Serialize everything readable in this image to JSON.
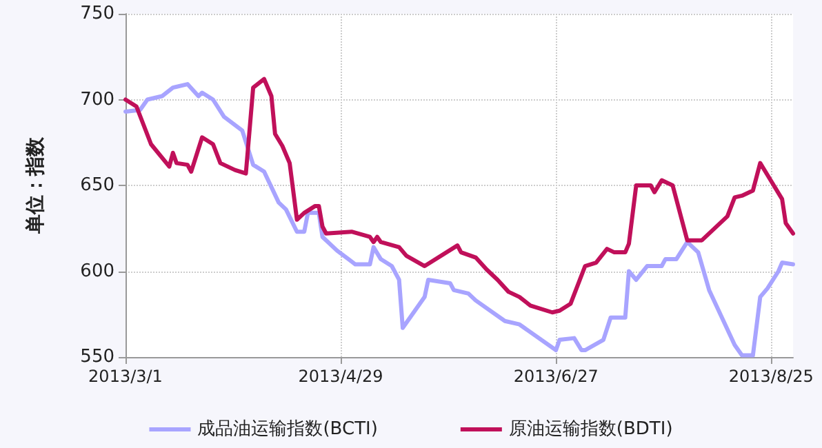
{
  "chart_data": {
    "type": "line",
    "ylabel": "单位：指数",
    "xlim": [
      "2013-03-01",
      "2013-08-31"
    ],
    "xticks": [
      {
        "value": "2013-03-01",
        "label": "2013/3/1"
      },
      {
        "value": "2013-04-29",
        "label": "2013/4/29"
      },
      {
        "value": "2013-06-27",
        "label": "2013/6/27"
      },
      {
        "value": "2013-08-25",
        "label": "2013/8/25"
      }
    ],
    "ylim": [
      550,
      750
    ],
    "yticks": [
      550,
      600,
      650,
      700,
      750
    ],
    "grid": true,
    "legend": "bottom",
    "marker": "none",
    "series": [
      {
        "name": "成品油运输指数(BCTI)",
        "color": "#a8a4ff",
        "x": [
          "2013-03-01",
          "2013-03-05",
          "2013-03-07",
          "2013-03-11",
          "2013-03-14",
          "2013-03-18",
          "2013-03-21",
          "2013-03-22",
          "2013-03-25",
          "2013-03-28",
          "2013-04-02",
          "2013-04-05",
          "2013-04-08",
          "2013-04-12",
          "2013-04-14",
          "2013-04-17",
          "2013-04-19",
          "2013-04-20",
          "2013-04-23",
          "2013-04-24",
          "2013-04-28",
          "2013-05-03",
          "2013-05-07",
          "2013-05-08",
          "2013-05-10",
          "2013-05-13",
          "2013-05-15",
          "2013-05-16",
          "2013-05-22",
          "2013-05-23",
          "2013-05-29",
          "2013-05-30",
          "2013-06-03",
          "2013-06-05",
          "2013-06-13",
          "2013-06-17",
          "2013-06-27",
          "2013-06-28",
          "2013-07-02",
          "2013-07-04",
          "2013-07-05",
          "2013-07-10",
          "2013-07-12",
          "2013-07-16",
          "2013-07-17",
          "2013-07-19",
          "2013-07-22",
          "2013-07-26",
          "2013-07-27",
          "2013-07-30",
          "2013-08-02",
          "2013-08-05",
          "2013-08-08",
          "2013-08-15",
          "2013-08-17",
          "2013-08-20",
          "2013-08-22",
          "2013-08-24",
          "2013-08-27",
          "2013-08-28",
          "2013-08-31"
        ],
        "values": [
          693,
          694,
          700,
          702,
          707,
          709,
          702,
          704,
          700,
          690,
          682,
          662,
          658,
          640,
          636,
          623,
          623,
          634,
          634,
          620,
          612,
          604,
          604,
          614,
          607,
          603,
          595,
          567,
          585,
          595,
          593,
          589,
          587,
          583,
          571,
          569,
          554,
          560,
          561,
          554,
          554,
          560,
          573,
          573,
          600,
          595,
          603,
          603,
          607,
          607,
          617,
          611,
          589,
          557,
          551,
          551,
          585,
          590,
          600,
          605,
          604
        ]
      },
      {
        "name": "原油运输指数(BDTI)",
        "color": "#c0105a",
        "x": [
          "2013-03-01",
          "2013-03-04",
          "2013-03-08",
          "2013-03-13",
          "2013-03-14",
          "2013-03-15",
          "2013-03-18",
          "2013-03-19",
          "2013-03-22",
          "2013-03-25",
          "2013-03-27",
          "2013-03-31",
          "2013-04-03",
          "2013-04-05",
          "2013-04-08",
          "2013-04-10",
          "2013-04-11",
          "2013-04-13",
          "2013-04-15",
          "2013-04-17",
          "2013-04-19",
          "2013-04-22",
          "2013-04-23",
          "2013-04-24",
          "2013-04-25",
          "2013-05-02",
          "2013-05-07",
          "2013-05-08",
          "2013-05-09",
          "2013-05-10",
          "2013-05-15",
          "2013-05-17",
          "2013-05-22",
          "2013-05-31",
          "2013-06-01",
          "2013-06-05",
          "2013-06-08",
          "2013-06-11",
          "2013-06-14",
          "2013-06-17",
          "2013-06-20",
          "2013-06-26",
          "2013-06-28",
          "2013-07-01",
          "2013-07-05",
          "2013-07-08",
          "2013-07-11",
          "2013-07-13",
          "2013-07-16",
          "2013-07-17",
          "2013-07-19",
          "2013-07-23",
          "2013-07-24",
          "2013-07-26",
          "2013-07-29",
          "2013-08-02",
          "2013-08-06",
          "2013-08-13",
          "2013-08-15",
          "2013-08-17",
          "2013-08-20",
          "2013-08-22",
          "2013-08-24",
          "2013-08-28",
          "2013-08-29",
          "2013-08-31"
        ],
        "values": [
          700,
          696,
          674,
          661,
          669,
          663,
          662,
          658,
          678,
          674,
          663,
          659,
          657,
          707,
          712,
          702,
          680,
          673,
          663,
          630,
          634,
          638,
          638,
          626,
          622,
          623,
          620,
          617,
          620,
          617,
          614,
          609,
          603,
          615,
          611,
          608,
          601,
          595,
          588,
          585,
          580,
          576,
          577,
          581,
          603,
          605,
          613,
          611,
          611,
          616,
          650,
          650,
          646,
          653,
          650,
          618,
          618,
          632,
          643,
          644,
          647,
          663,
          656,
          642,
          628,
          622
        ]
      }
    ]
  }
}
